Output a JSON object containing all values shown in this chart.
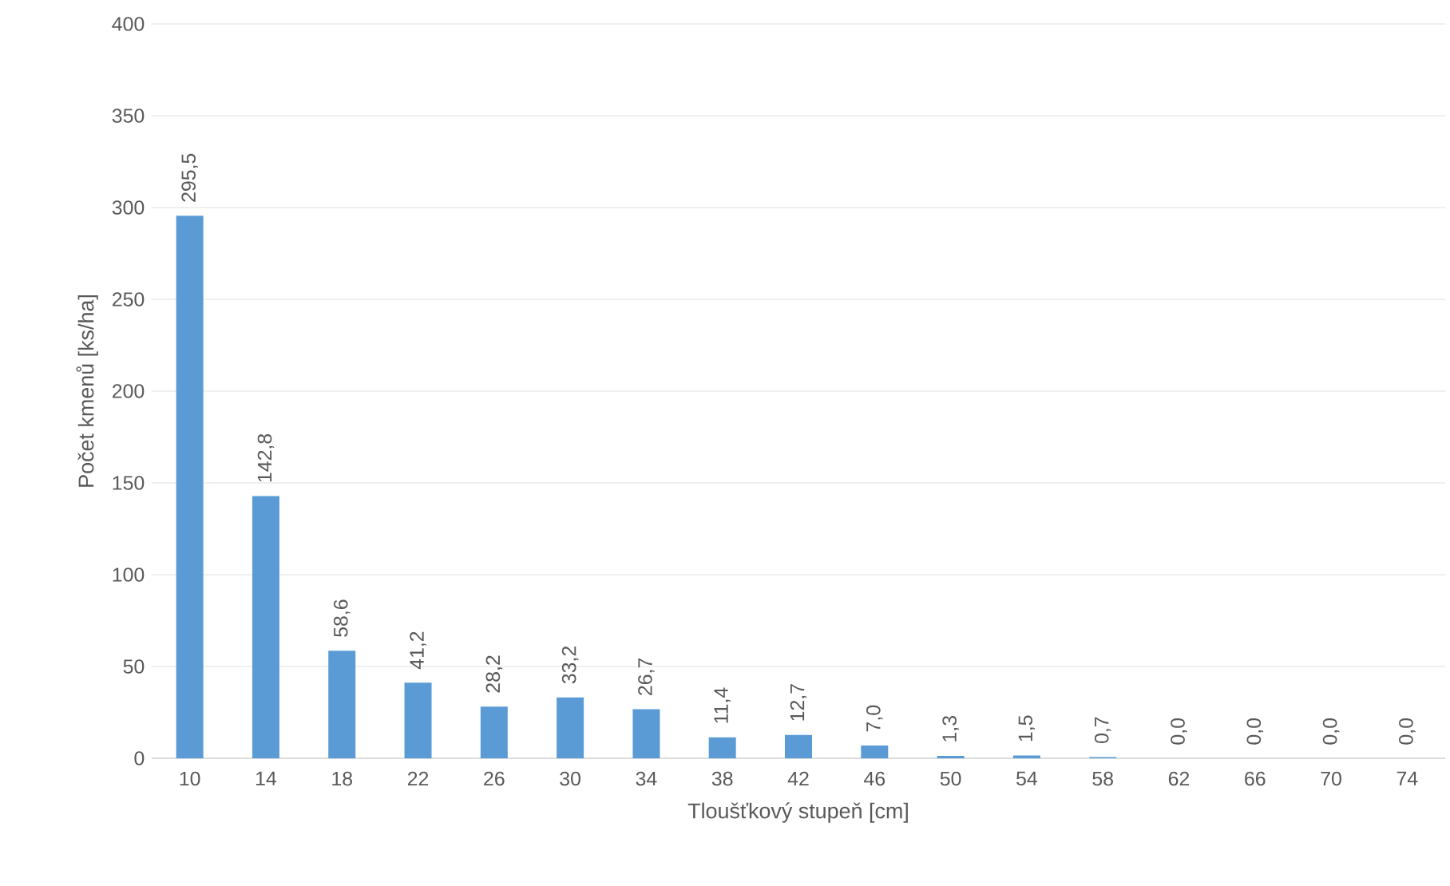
{
  "chart_data": {
    "type": "bar",
    "xlabel": "Tloušťkový stupeň [cm]",
    "ylabel": "Počet kmenů [ks/ha]",
    "categories": [
      "10",
      "14",
      "18",
      "22",
      "26",
      "30",
      "34",
      "38",
      "42",
      "46",
      "50",
      "54",
      "58",
      "62",
      "66",
      "70",
      "74"
    ],
    "values": [
      295.5,
      142.8,
      58.6,
      41.2,
      28.2,
      33.2,
      26.7,
      11.4,
      12.7,
      7.0,
      1.3,
      1.5,
      0.7,
      0.0,
      0.0,
      0.0,
      0.0
    ],
    "value_labels": [
      "295,5",
      "142,8",
      "58,6",
      "41,2",
      "28,2",
      "33,2",
      "26,7",
      "11,4",
      "12,7",
      "7,0",
      "1,3",
      "1,5",
      "0,7",
      "0,0",
      "0,0",
      "0,0",
      "0,0"
    ],
    "color": "#5b9bd5",
    "ylim": [
      0,
      400
    ],
    "yticks": [
      0,
      50,
      100,
      150,
      200,
      250,
      300,
      350,
      400
    ],
    "grid": "y"
  }
}
